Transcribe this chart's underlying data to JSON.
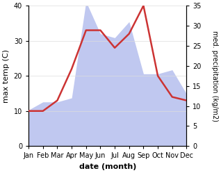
{
  "months": [
    "Jan",
    "Feb",
    "Mar",
    "Apr",
    "May",
    "Jun",
    "Jul",
    "Aug",
    "Sep",
    "Oct",
    "Nov",
    "Dec"
  ],
  "temperature": [
    10,
    10,
    13,
    22,
    33,
    33,
    28,
    32,
    40,
    20,
    14,
    13
  ],
  "precipitation": [
    9,
    11,
    11,
    12,
    36,
    28,
    27,
    31,
    18,
    18,
    19,
    13
  ],
  "temp_color": "#cc3333",
  "precip_fill_color": "#c0c8f0",
  "temp_ylim": [
    0,
    40
  ],
  "precip_ylim": [
    0,
    35
  ],
  "temp_yticks": [
    0,
    10,
    20,
    30,
    40
  ],
  "precip_yticks": [
    0,
    5,
    10,
    15,
    20,
    25,
    30,
    35
  ],
  "ylabel_left": "max temp (C)",
  "ylabel_right": "med. precipitation (kg/m2)",
  "xlabel": "date (month)",
  "figsize": [
    3.18,
    2.49
  ],
  "dpi": 100,
  "bg_color": "#ffffff",
  "temp_linewidth": 1.8,
  "grid_color": "#dddddd"
}
